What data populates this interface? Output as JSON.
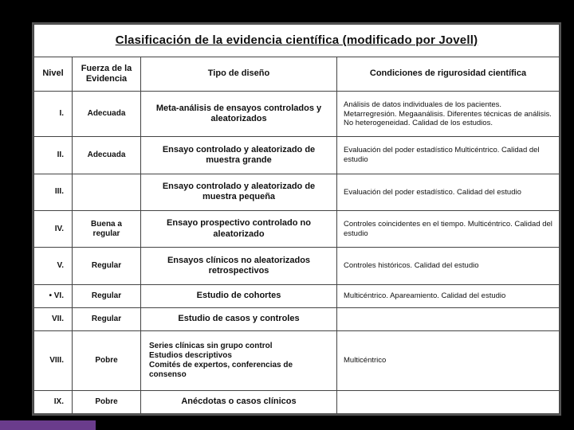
{
  "title": "Clasificación de la evidencia científica (modificado por Jovell)",
  "headers": {
    "nivel": "Nivel",
    "fuerza": "Fuerza de la Evidencia",
    "tipo": "Tipo de diseño",
    "cond": "Condiciones de rigurosidad científica"
  },
  "rows": [
    {
      "nivel": "I.",
      "fuerza": "Adecuada",
      "tipo": "Meta-análisis de ensayos controlados y aleatorizados",
      "cond": "Análisis de datos individuales de los pacientes. Metarregresión. Megaanálisis. Diferentes técnicas de análisis. No heterogeneidad. Calidad de los estudios."
    },
    {
      "nivel": "II.",
      "fuerza": "Adecuada",
      "tipo": "Ensayo controlado y aleatorizado de muestra grande",
      "cond": "Evaluación del poder estadístico Multicéntrico. Calidad del estudio"
    },
    {
      "nivel": "III.",
      "fuerza": "",
      "tipo": "Ensayo controlado y aleatorizado de muestra pequeña",
      "cond": "Evaluación del poder estadístico. Calidad del estudio"
    },
    {
      "nivel": "IV.",
      "fuerza": "Buena a regular",
      "tipo": "Ensayo prospectivo controlado no aleatorizado",
      "cond": "Controles coincidentes en el tiempo. Multicéntrico. Calidad del estudio"
    },
    {
      "nivel": "V.",
      "fuerza": "Regular",
      "tipo": "Ensayos clínicos no aleatorizados retrospectivos",
      "cond": "Controles históricos. Calidad del estudio"
    },
    {
      "nivel": "• VI.",
      "fuerza": "Regular",
      "tipo": "Estudio de cohortes",
      "cond": "Multicéntrico. Apareamiento. Calidad del estudio"
    },
    {
      "nivel": "VII.",
      "fuerza": "Regular",
      "tipo": "Estudio de casos y controles",
      "cond": ""
    },
    {
      "nivel": "VIII.",
      "fuerza": "Pobre",
      "tipo": "Series clínicas sin grupo control\nEstudios descriptivos\nComités de expertos, conferencias de consenso",
      "tipo_left": true,
      "cond": "Multicéntrico"
    },
    {
      "nivel": "IX.",
      "fuerza": "Pobre",
      "tipo": "Anécdotas o casos clínicos",
      "cond": ""
    }
  ],
  "colors": {
    "background": "#000000",
    "accent": "#6a3c8c",
    "table_bg": "#ffffff",
    "border": "#444444",
    "text": "#111111"
  }
}
